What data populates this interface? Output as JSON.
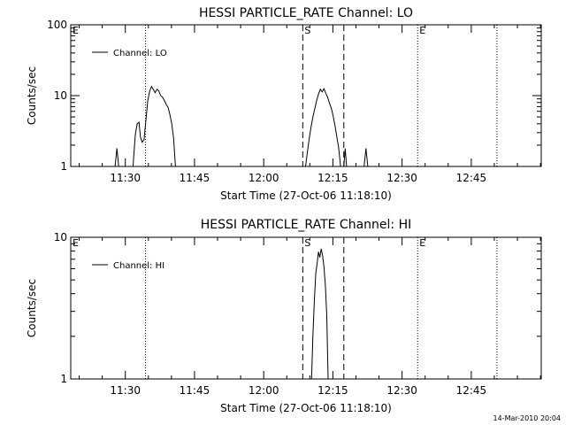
{
  "footer_timestamp": "14-Mar-2010 20:04",
  "chart_data": [
    {
      "type": "line",
      "title": "HESSI PARTICLE_RATE Channel: LO",
      "xlabel": "Start Time (27-Oct-06 11:18:10)",
      "ylabel": "Counts/sec",
      "yscale": "log",
      "ylim": [
        1,
        100
      ],
      "y_ticks": [
        1,
        10,
        100
      ],
      "y_tick_labels": [
        "1",
        "10",
        "100"
      ],
      "x_unit": "minutes after 11:18:10",
      "xlim": [
        0,
        102
      ],
      "x_tick_labels": [
        "11:30",
        "11:45",
        "12:00",
        "12:15",
        "12:30",
        "12:45"
      ],
      "x_ticks": [
        11.83,
        26.83,
        41.83,
        56.83,
        71.83,
        86.83
      ],
      "legend": {
        "label": "Channel: LO",
        "placement": "top-left"
      },
      "markers": [
        {
          "x": 0.0,
          "style": "dotted",
          "label": "E"
        },
        {
          "x": 16.2,
          "style": "dotted",
          "label": ""
        },
        {
          "x": 50.3,
          "style": "dashed",
          "label": "S"
        },
        {
          "x": 59.2,
          "style": "dashed",
          "label": ""
        },
        {
          "x": 75.2,
          "style": "dotted",
          "label": "E"
        },
        {
          "x": 92.4,
          "style": "dotted",
          "label": ""
        }
      ],
      "series": [
        {
          "name": "Channel: LO",
          "segments": [
            {
              "x": [
                9.6,
                10.0,
                10.4
              ],
              "y": [
                1,
                1.8,
                1
              ]
            },
            {
              "x": [
                13.5,
                14.0,
                14.4,
                14.8,
                15.1,
                15.5,
                15.9,
                16.3,
                16.7,
                17.1,
                17.5,
                17.9,
                18.3,
                18.7,
                19.1,
                19.5,
                19.9,
                20.3,
                20.7,
                21.1,
                21.5,
                21.9,
                22.3,
                22.7
              ],
              "y": [
                1,
                2.8,
                4.0,
                4.2,
                2.6,
                2.2,
                2.4,
                4.5,
                8.5,
                11.5,
                13.5,
                12.2,
                11.0,
                12.3,
                11.6,
                10.0,
                9.5,
                8.5,
                7.5,
                6.8,
                5.4,
                4.0,
                2.5,
                1
              ]
            },
            {
              "x": [
                50.9,
                51.3,
                51.7,
                52.1,
                52.5,
                52.9,
                53.3,
                53.7,
                54.1,
                54.5,
                54.9,
                55.3,
                55.7,
                56.1,
                56.5,
                56.9,
                57.3,
                57.7,
                58.1,
                58.5
              ],
              "y": [
                1,
                1.6,
                2.5,
                3.6,
                5.0,
                6.5,
                8.5,
                10.5,
                12.3,
                11.3,
                12.5,
                10.8,
                9.5,
                7.8,
                6.6,
                5.1,
                3.7,
                2.6,
                1.8,
                1
              ]
            },
            {
              "x": [
                59.2,
                59.5,
                59.8
              ],
              "y": [
                1,
                1.8,
                1
              ]
            },
            {
              "x": [
                63.6,
                64.0,
                64.4
              ],
              "y": [
                1,
                1.8,
                1
              ]
            }
          ]
        }
      ]
    },
    {
      "type": "line",
      "title": "HESSI PARTICLE_RATE Channel: HI",
      "xlabel": "Start Time (27-Oct-06 11:18:10)",
      "ylabel": "Counts/sec",
      "yscale": "log",
      "ylim": [
        1,
        10
      ],
      "y_ticks": [
        1,
        10
      ],
      "y_tick_labels": [
        "1",
        "10"
      ],
      "x_unit": "minutes after 11:18:10",
      "xlim": [
        0,
        102
      ],
      "x_tick_labels": [
        "11:30",
        "11:45",
        "12:00",
        "12:15",
        "12:30",
        "12:45"
      ],
      "x_ticks": [
        11.83,
        26.83,
        41.83,
        56.83,
        71.83,
        86.83
      ],
      "legend": {
        "label": "Channel: HI",
        "placement": "top-left"
      },
      "markers": [
        {
          "x": 0.0,
          "style": "dotted",
          "label": "E"
        },
        {
          "x": 16.2,
          "style": "dotted",
          "label": ""
        },
        {
          "x": 50.3,
          "style": "dashed",
          "label": "S"
        },
        {
          "x": 59.2,
          "style": "dashed",
          "label": ""
        },
        {
          "x": 75.2,
          "style": "dotted",
          "label": "E"
        },
        {
          "x": 92.4,
          "style": "dotted",
          "label": ""
        }
      ],
      "series": [
        {
          "name": "Channel: HI",
          "segments": [
            {
              "x": [
                52.2,
                52.5,
                52.8,
                53.1,
                53.4,
                53.7,
                54.0,
                54.3,
                54.6,
                54.9,
                55.2,
                55.5,
                55.8
              ],
              "y": [
                1,
                2.0,
                3.5,
                5.5,
                6.5,
                7.9,
                7.2,
                8.3,
                7.4,
                6.2,
                4.6,
                2.8,
                1
              ]
            }
          ]
        }
      ]
    }
  ]
}
